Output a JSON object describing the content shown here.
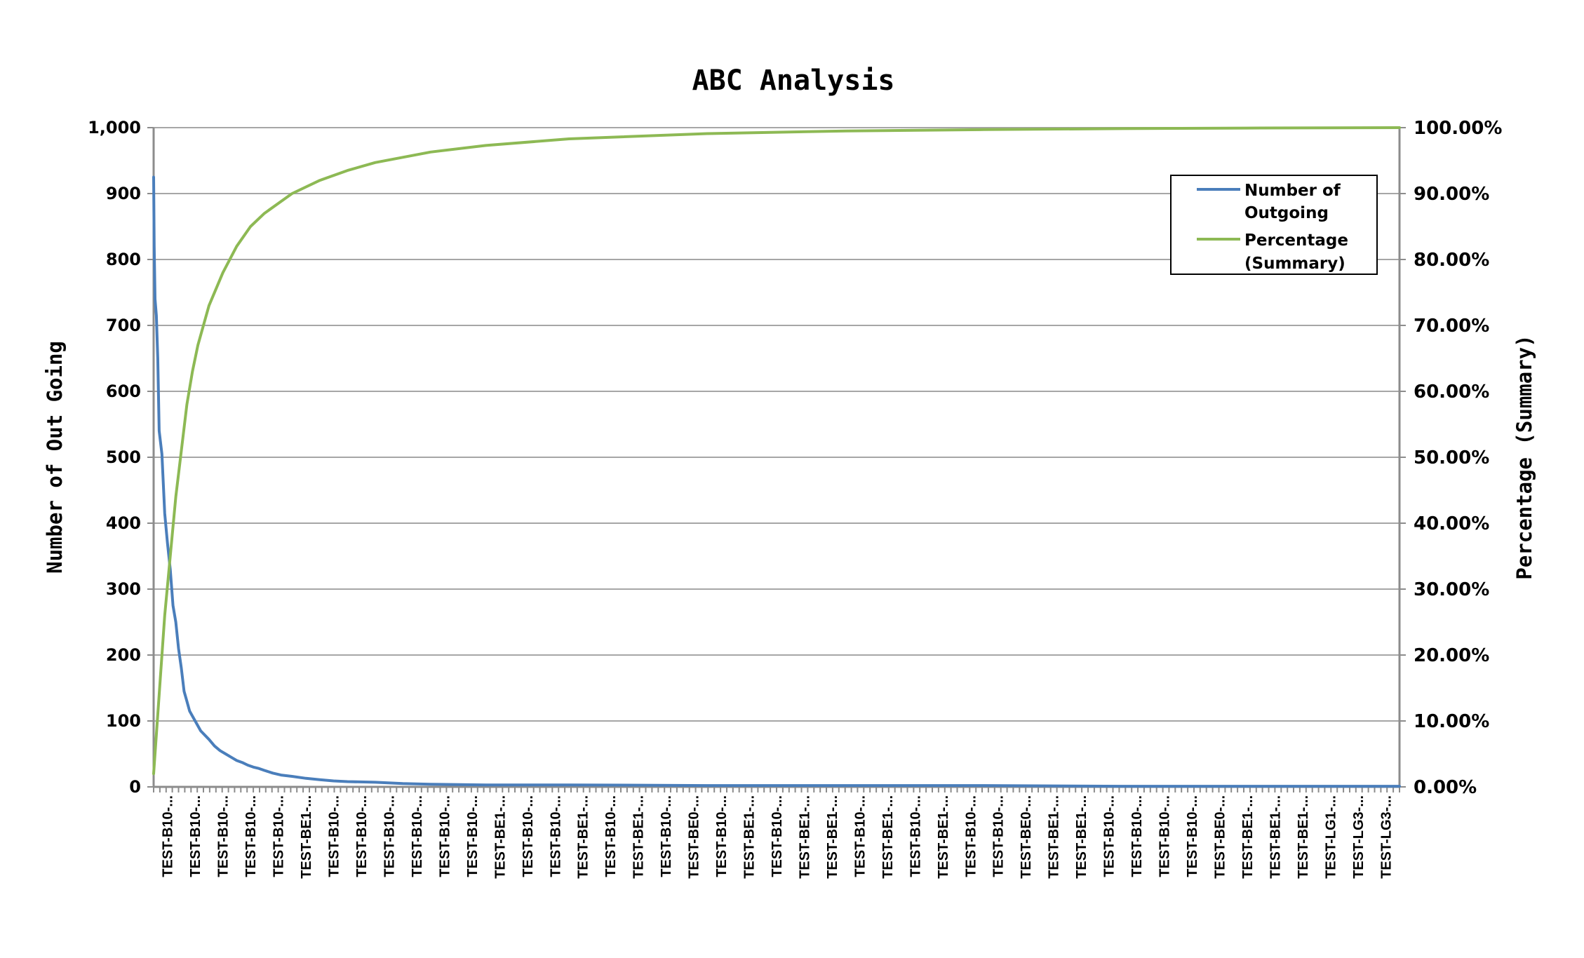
{
  "colors": {
    "series_outgoing": "#4a7ebb",
    "series_percentage": "#8db954",
    "gridline": "#a6a6a6",
    "axis": "#8c8c8c"
  },
  "chart_data": {
    "type": "line",
    "title": "ABC Analysis",
    "ylabel_left": "Number of Out Going",
    "ylabel_right": "Percentage (Summary)",
    "xlabel": "",
    "ylim_left": [
      0,
      1000
    ],
    "ylim_right": [
      0,
      100
    ],
    "grid": true,
    "legend_position": "top-right",
    "left_ticks": [
      "0",
      "100",
      "200",
      "300",
      "400",
      "500",
      "600",
      "700",
      "800",
      "900",
      "1,000"
    ],
    "right_ticks": [
      "0.00%",
      "10.00%",
      "20.00%",
      "30.00%",
      "40.00%",
      "50.00%",
      "60.00%",
      "70.00%",
      "80.00%",
      "90.00%",
      "100.00%"
    ],
    "x_labels": [
      "TEST-B10-...",
      "TEST-B10-...",
      "TEST-B10-...",
      "TEST-B10-...",
      "TEST-B10-...",
      "TEST-BE1-...",
      "TEST-B10-...",
      "TEST-B10-...",
      "TEST-B10-...",
      "TEST-B10-...",
      "TEST-B10-...",
      "TEST-B10-...",
      "TEST-BE1-...",
      "TEST-B10-...",
      "TEST-B10-...",
      "TEST-BE1-...",
      "TEST-B10-...",
      "TEST-BE1-...",
      "TEST-B10-...",
      "TEST-BE0-...",
      "TEST-B10-...",
      "TEST-BE1-...",
      "TEST-B10-...",
      "TEST-BE1-...",
      "TEST-BE1-...",
      "TEST-B10-...",
      "TEST-BE1-...",
      "TEST-B10-...",
      "TEST-BE1-...",
      "TEST-B10-...",
      "TEST-B10-...",
      "TEST-BE0-...",
      "TEST-BE1-...",
      "TEST-BE1-...",
      "TEST-B10-...",
      "TEST-B10-...",
      "TEST-B10-...",
      "TEST-B10-...",
      "TEST-BE0-...",
      "TEST-BE1-...",
      "TEST-BE1-...",
      "TEST-BE1-...",
      "TEST-LG1-...",
      "TEST-LG3-...",
      "TEST-LG3-..."
    ],
    "series": [
      {
        "name": "Number of Outgoing",
        "axis": "left",
        "x": [
          0,
          0.2,
          0.5,
          1,
          1.5,
          2,
          3,
          4,
          5,
          6,
          7,
          8,
          9,
          10,
          11,
          12,
          13,
          15,
          17,
          20,
          22,
          24,
          26,
          28,
          30,
          32,
          34,
          36,
          38,
          40,
          43,
          46,
          50,
          55,
          60,
          65,
          70,
          80,
          90,
          100,
          120,
          150,
          200,
          250,
          300,
          350,
          400,
          450
        ],
        "values": [
          925,
          820,
          740,
          715,
          650,
          540,
          505,
          415,
          370,
          330,
          275,
          250,
          210,
          180,
          145,
          130,
          115,
          100,
          85,
          72,
          62,
          55,
          50,
          45,
          40,
          37,
          33,
          30,
          28,
          25,
          21,
          18,
          16,
          13,
          11,
          9,
          8,
          7,
          5,
          4,
          3,
          3,
          2,
          2,
          2,
          1,
          1,
          1
        ]
      },
      {
        "name": "Percentage (Summary)",
        "axis": "right",
        "x": [
          0,
          2,
          4,
          6,
          8,
          10,
          12,
          14,
          16,
          20,
          25,
          30,
          35,
          40,
          50,
          60,
          70,
          80,
          100,
          120,
          150,
          200,
          250,
          300,
          350,
          400,
          450
        ],
        "values": [
          2,
          14,
          26,
          35,
          44,
          51,
          58,
          63,
          67,
          73,
          78,
          82,
          85,
          87,
          90,
          92,
          93.5,
          94.7,
          96.3,
          97.3,
          98.3,
          99.1,
          99.5,
          99.7,
          99.85,
          99.95,
          100
        ]
      }
    ]
  }
}
